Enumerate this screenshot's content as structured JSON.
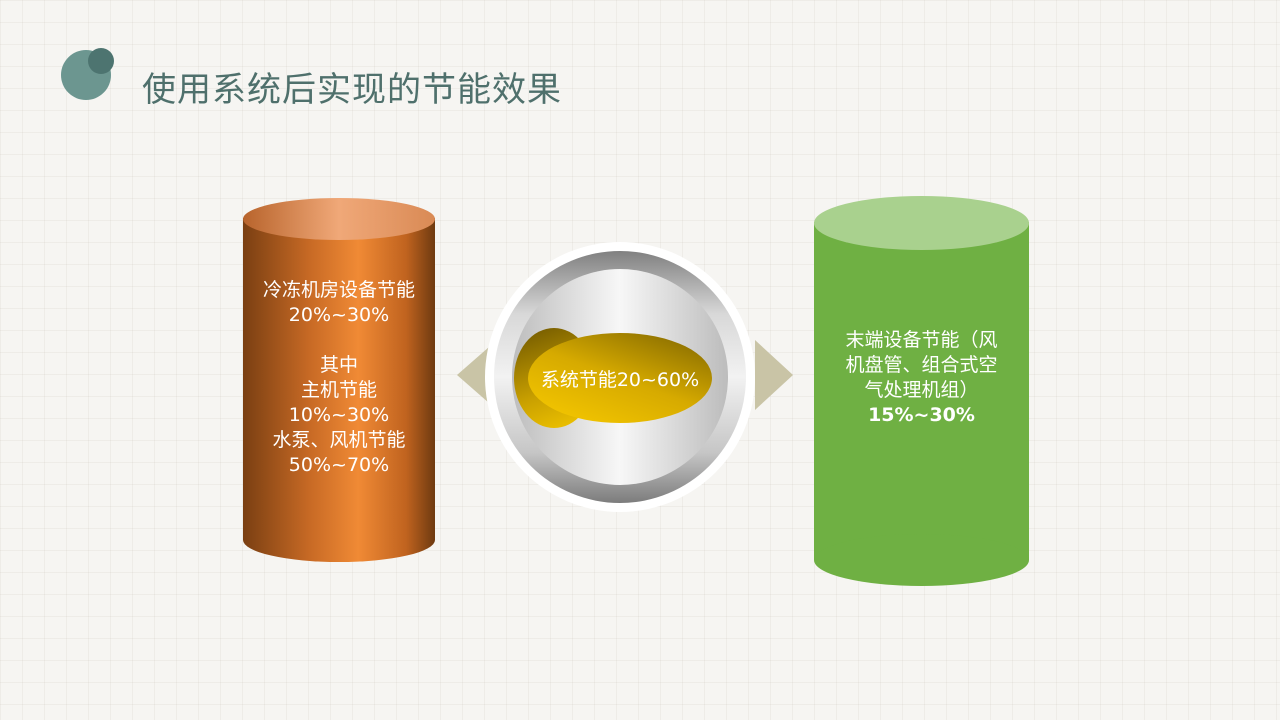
{
  "header": {
    "title": "使用系统后实现的节能效果"
  },
  "left": {
    "lines": [
      "冷冻机房设备节能",
      "20%~30%",
      "",
      "其中",
      "主机节能",
      "10%~30%",
      "水泵、风机节能",
      "50%~70%"
    ]
  },
  "center": {
    "label": "系统节能20~60%"
  },
  "right": {
    "lines": [
      "末端设备节能（风",
      "机盘管、组合式空",
      "气处理机组）",
      "15%~30%"
    ]
  },
  "colors": {
    "orange": "#f08a35",
    "green": "#6fb043",
    "gold": "#d6aa00",
    "title": "#4f706c"
  }
}
